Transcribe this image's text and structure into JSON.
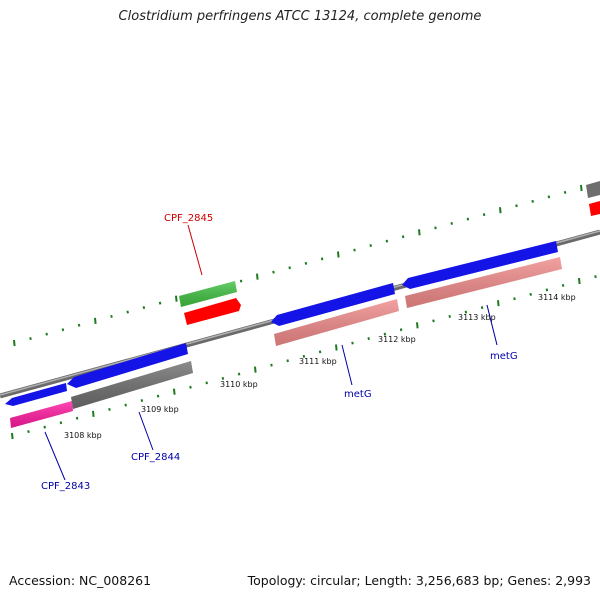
{
  "title": "Clostridium perfringens ATCC 13124, complete genome",
  "footer": {
    "accession": "Accession: NC_008261",
    "summary": "Topology: circular; Length: 3,256,683 bp; Genes: 2,993"
  },
  "colors": {
    "backbone": "#8a8a8a",
    "tick": "#1e7a1e",
    "forward_cds": "#1010e8",
    "reverse_cds": "#ff0000",
    "rna": "#40c040",
    "other": "#6e6e6e",
    "pink": "#ff1aa0",
    "salmon": "#f08a8a"
  },
  "scale_labels": [
    {
      "name": "kbp-3108",
      "text": "3108 kbp"
    },
    {
      "name": "kbp-3109",
      "text": "3109 kbp"
    },
    {
      "name": "kbp-3110",
      "text": "3110 kbp"
    },
    {
      "name": "kbp-3111",
      "text": "3111 kbp"
    },
    {
      "name": "kbp-3112",
      "text": "3112 kbp"
    },
    {
      "name": "kbp-3113",
      "text": "3113 kbp"
    },
    {
      "name": "kbp-3114",
      "text": "3114 kbp"
    }
  ],
  "gene_labels": [
    {
      "name": "label-cpf-2845",
      "text": "CPF_2845",
      "color": "#cc0000"
    },
    {
      "name": "label-cpf-2843",
      "text": "CPF_2843",
      "color": "#0000aa"
    },
    {
      "name": "label-cpf-2844",
      "text": "CPF_2844",
      "color": "#0000aa"
    },
    {
      "name": "label-metg-1",
      "text": "metG",
      "color": "#0000aa"
    },
    {
      "name": "label-metg-2",
      "text": "metG",
      "color": "#0000aa"
    }
  ]
}
